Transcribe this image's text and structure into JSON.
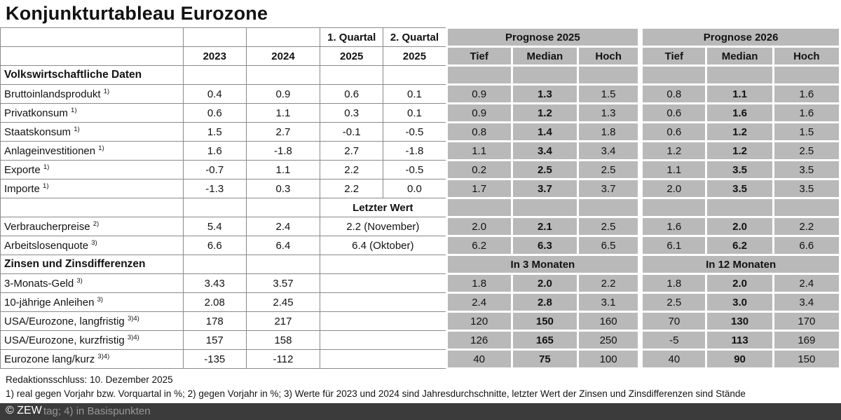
{
  "title": "Konjunkturtableau Eurozone",
  "colors": {
    "cell_gray": "#b9b9b9",
    "footer_bar": "#3b3b3b",
    "table_border": "#8a8a8a",
    "text": "#121212"
  },
  "table": {
    "header": {
      "q1": "1. Quartal",
      "q2": "2. Quartal",
      "prognose_2025": "Prognose 2025",
      "prognose_2026": "Prognose 2026",
      "years": [
        "2023",
        "2024",
        "2025",
        "2025"
      ],
      "sub": [
        "Tief",
        "Median",
        "Hoch",
        "Tief",
        "Median",
        "Hoch"
      ]
    },
    "rows": [
      {
        "label": "Volkswirtschaftliche Daten",
        "section": true,
        "white": [
          {
            "v": ""
          },
          {
            "v": ""
          },
          {
            "v": ""
          },
          {
            "v": ""
          }
        ],
        "gray": [
          {},
          {},
          {},
          {},
          {},
          {}
        ]
      },
      {
        "label": "Bruttoinlandsprodukt",
        "sup": "1)",
        "white": [
          {
            "v": "0.4"
          },
          {
            "v": "0.9"
          },
          {
            "v": "0.6"
          },
          {
            "v": "0.1"
          }
        ],
        "gray": [
          {
            "v": "0.9"
          },
          {
            "v": "1.3",
            "b": true
          },
          {
            "v": "1.5"
          },
          {
            "v": "0.8"
          },
          {
            "v": "1.1",
            "b": true
          },
          {
            "v": "1.6"
          }
        ]
      },
      {
        "label": "Privatkonsum",
        "sup": "1)",
        "white": [
          {
            "v": "0.6"
          },
          {
            "v": "1.1"
          },
          {
            "v": "0.3"
          },
          {
            "v": "0.1"
          }
        ],
        "gray": [
          {
            "v": "0.9"
          },
          {
            "v": "1.2",
            "b": true
          },
          {
            "v": "1.3"
          },
          {
            "v": "0.6"
          },
          {
            "v": "1.6",
            "b": true
          },
          {
            "v": "1.6"
          }
        ]
      },
      {
        "label": "Staatskonsum",
        "sup": "1)",
        "white": [
          {
            "v": "1.5"
          },
          {
            "v": "2.7"
          },
          {
            "v": "-0.1"
          },
          {
            "v": "-0.5"
          }
        ],
        "gray": [
          {
            "v": "0.8"
          },
          {
            "v": "1.4",
            "b": true
          },
          {
            "v": "1.8"
          },
          {
            "v": "0.6"
          },
          {
            "v": "1.2",
            "b": true
          },
          {
            "v": "1.5"
          }
        ]
      },
      {
        "label": "Anlageinvestitionen",
        "sup": "1)",
        "white": [
          {
            "v": "1.6"
          },
          {
            "v": "-1.8"
          },
          {
            "v": "2.7"
          },
          {
            "v": "-1.8"
          }
        ],
        "gray": [
          {
            "v": "1.1"
          },
          {
            "v": "3.4",
            "b": true
          },
          {
            "v": "3.4"
          },
          {
            "v": "1.2"
          },
          {
            "v": "1.2",
            "b": true
          },
          {
            "v": "2.5"
          }
        ]
      },
      {
        "label": "Exporte",
        "sup": "1)",
        "white": [
          {
            "v": "-0.7"
          },
          {
            "v": "1.1"
          },
          {
            "v": "2.2"
          },
          {
            "v": "-0.5"
          }
        ],
        "gray": [
          {
            "v": "0.2"
          },
          {
            "v": "2.5",
            "b": true
          },
          {
            "v": "2.5"
          },
          {
            "v": "1.1"
          },
          {
            "v": "3.5",
            "b": true
          },
          {
            "v": "3.5"
          }
        ]
      },
      {
        "label": "Importe",
        "sup": "1)",
        "white": [
          {
            "v": "-1.3"
          },
          {
            "v": "0.3"
          },
          {
            "v": "2.2"
          },
          {
            "v": "0.0"
          }
        ],
        "gray": [
          {
            "v": "1.7"
          },
          {
            "v": "3.7",
            "b": true
          },
          {
            "v": "3.7"
          },
          {
            "v": "2.0"
          },
          {
            "v": "3.5",
            "b": true
          },
          {
            "v": "3.5"
          }
        ]
      },
      {
        "label": "",
        "white": [
          {
            "v": ""
          },
          {
            "v": ""
          },
          {
            "v": "Letzter Wert",
            "span": 2,
            "b": true
          }
        ],
        "gray": [
          {},
          {},
          {},
          {},
          {},
          {}
        ]
      },
      {
        "label": "Verbraucherpreise",
        "sup": "2)",
        "white": [
          {
            "v": "5.4"
          },
          {
            "v": "2.4"
          },
          {
            "v": "2.2 (November)",
            "span": 2
          }
        ],
        "gray": [
          {
            "v": "2.0"
          },
          {
            "v": "2.1",
            "b": true
          },
          {
            "v": "2.5"
          },
          {
            "v": "1.6"
          },
          {
            "v": "2.0",
            "b": true
          },
          {
            "v": "2.2"
          }
        ]
      },
      {
        "label": "Arbeitslosenquote",
        "sup": "3)",
        "white": [
          {
            "v": "6.6"
          },
          {
            "v": "6.4"
          },
          {
            "v": "6.4 (Oktober)",
            "span": 2
          }
        ],
        "gray": [
          {
            "v": "6.2"
          },
          {
            "v": "6.3",
            "b": true
          },
          {
            "v": "6.5"
          },
          {
            "v": "6.1"
          },
          {
            "v": "6.2",
            "b": true
          },
          {
            "v": "6.6"
          }
        ]
      },
      {
        "label": "Zinsen und Zinsdifferenzen",
        "section": true,
        "white": [
          {
            "v": ""
          },
          {
            "v": ""
          },
          {
            "v": "",
            "span": 2
          }
        ],
        "gray": [
          {
            "v": "In 3 Monaten",
            "span": 3,
            "b": true
          },
          {
            "v": "In 12 Monaten",
            "span": 3,
            "b": true
          }
        ]
      },
      {
        "label": "3-Monats-Geld",
        "sup": "3)",
        "white": [
          {
            "v": "3.43"
          },
          {
            "v": "3.57"
          },
          {
            "v": "",
            "span": 2
          }
        ],
        "gray": [
          {
            "v": "1.8"
          },
          {
            "v": "2.0",
            "b": true
          },
          {
            "v": "2.2"
          },
          {
            "v": "1.8"
          },
          {
            "v": "2.0",
            "b": true
          },
          {
            "v": "2.4"
          }
        ]
      },
      {
        "label": "10-jährige Anleihen",
        "sup": "3)",
        "white": [
          {
            "v": "2.08"
          },
          {
            "v": "2.45"
          },
          {
            "v": "",
            "span": 2
          }
        ],
        "gray": [
          {
            "v": "2.4"
          },
          {
            "v": "2.8",
            "b": true
          },
          {
            "v": "3.1"
          },
          {
            "v": "2.5"
          },
          {
            "v": "3.0",
            "b": true
          },
          {
            "v": "3.4"
          }
        ]
      },
      {
        "label": "USA/Eurozone, langfristig",
        "sup": "3)4)",
        "white": [
          {
            "v": "178"
          },
          {
            "v": "217"
          },
          {
            "v": "",
            "span": 2
          }
        ],
        "gray": [
          {
            "v": "120"
          },
          {
            "v": "150",
            "b": true
          },
          {
            "v": "160"
          },
          {
            "v": "70"
          },
          {
            "v": "130",
            "b": true
          },
          {
            "v": "170"
          }
        ]
      },
      {
        "label": "USA/Eurozone, kurzfristig",
        "sup": "3)4)",
        "white": [
          {
            "v": "157"
          },
          {
            "v": "158"
          },
          {
            "v": "",
            "span": 2
          }
        ],
        "gray": [
          {
            "v": "126"
          },
          {
            "v": "165",
            "b": true
          },
          {
            "v": "250"
          },
          {
            "v": "-5"
          },
          {
            "v": "113",
            "b": true
          },
          {
            "v": "169"
          }
        ]
      },
      {
        "label": "Eurozone lang/kurz",
        "sup": "3)4)",
        "white": [
          {
            "v": "-135"
          },
          {
            "v": "-112"
          },
          {
            "v": "",
            "span": 2
          }
        ],
        "gray": [
          {
            "v": "40"
          },
          {
            "v": "75",
            "b": true
          },
          {
            "v": "100"
          },
          {
            "v": "40"
          },
          {
            "v": "90",
            "b": true
          },
          {
            "v": "150"
          }
        ]
      }
    ]
  },
  "footer": {
    "line1": "Redaktionsschluss: 10. Dezember 2025",
    "line2": "1) real gegen Vorjahr bzw. Vorquartal in %; 2) gegen Vorjahr in %; 3) Werte für 2023 und 2024 sind Jahresdurchschnitte, letzter Wert der Zinsen und Zinsdifferenzen sind Stände",
    "bar_fragment": "tag; 4) in Basispunkten",
    "copyright": "© ZEW"
  }
}
